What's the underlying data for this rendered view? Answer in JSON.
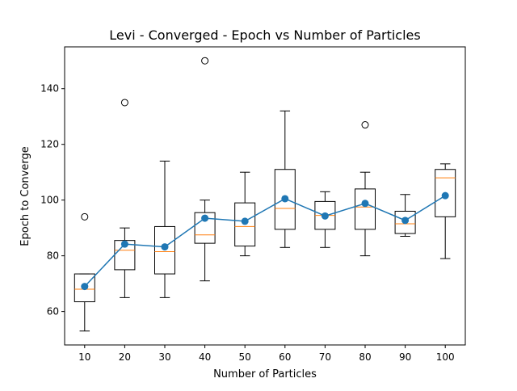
{
  "chart_data": {
    "type": "box",
    "title": "Levi - Converged - Epoch vs Number of Particles",
    "xlabel": "Number of Particles",
    "ylabel": "Epoch to Converge",
    "categories": [
      "10",
      "20",
      "30",
      "40",
      "50",
      "60",
      "70",
      "80",
      "90",
      "100"
    ],
    "ylim": [
      48,
      155
    ],
    "yticks": [
      60,
      80,
      100,
      120,
      140
    ],
    "grid": false,
    "boxes": [
      {
        "category": "10",
        "whisker_low": 53,
        "q1": 63.5,
        "median": 68,
        "q3": 73.5,
        "whisker_high": 73.5,
        "outliers": [
          94
        ]
      },
      {
        "category": "20",
        "whisker_low": 65,
        "q1": 75,
        "median": 82,
        "q3": 85.5,
        "whisker_high": 90,
        "outliers": [
          135
        ]
      },
      {
        "category": "30",
        "whisker_low": 65,
        "q1": 73.5,
        "median": 81.5,
        "q3": 90.5,
        "whisker_high": 114,
        "outliers": []
      },
      {
        "category": "40",
        "whisker_low": 71,
        "q1": 84.5,
        "median": 87.5,
        "q3": 95.5,
        "whisker_high": 100,
        "outliers": [
          150
        ]
      },
      {
        "category": "50",
        "whisker_low": 80,
        "q1": 83.5,
        "median": 90.5,
        "q3": 99,
        "whisker_high": 110,
        "outliers": []
      },
      {
        "category": "60",
        "whisker_low": 83,
        "q1": 89.5,
        "median": 97,
        "q3": 111,
        "whisker_high": 132,
        "outliers": []
      },
      {
        "category": "70",
        "whisker_low": 83,
        "q1": 89.5,
        "median": 94.5,
        "q3": 99.5,
        "whisker_high": 103,
        "outliers": []
      },
      {
        "category": "80",
        "whisker_low": 80,
        "q1": 89.5,
        "median": 97.5,
        "q3": 104,
        "whisker_high": 110,
        "outliers": [
          127
        ]
      },
      {
        "category": "90",
        "whisker_low": 87,
        "q1": 88,
        "median": 91.5,
        "q3": 96,
        "whisker_high": 102,
        "outliers": []
      },
      {
        "category": "100",
        "whisker_low": 79,
        "q1": 94,
        "median": 108,
        "q3": 111,
        "whisker_high": 113,
        "outliers": []
      }
    ],
    "series": [
      {
        "type": "line",
        "values": [
          69,
          84.2,
          83.2,
          93.5,
          92.4,
          100.5,
          94.3,
          98.8,
          92.7,
          101.6
        ]
      }
    ],
    "colors": {
      "mean_line": "#1f77b4",
      "median": "#ff7f0e",
      "box": "#000000"
    }
  }
}
